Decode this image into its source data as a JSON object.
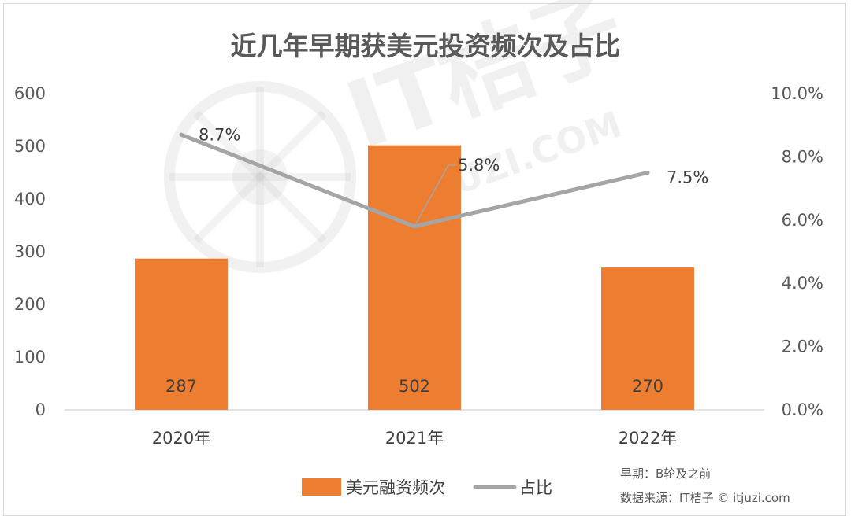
{
  "chart_data": {
    "type": "bar+line",
    "title": "近几年早期获美元投资频次及占比",
    "categories": [
      "2020年",
      "2021年",
      "2022年"
    ],
    "series": [
      {
        "name": "美元融资频次",
        "type": "bar",
        "axis": "left",
        "values": [
          287,
          502,
          270
        ],
        "labels": [
          "287",
          "502",
          "270"
        ]
      },
      {
        "name": "占比",
        "type": "line",
        "axis": "right",
        "values": [
          8.7,
          5.8,
          7.5
        ],
        "labels": [
          "8.7%",
          "5.8%",
          "7.5%"
        ]
      }
    ],
    "y_left": {
      "min": 0,
      "max": 600,
      "ticks": [
        "0",
        "100",
        "200",
        "300",
        "400",
        "500",
        "600"
      ]
    },
    "y_right": {
      "min": 0,
      "max": 10,
      "ticks": [
        "0.0%",
        "2.0%",
        "4.0%",
        "6.0%",
        "8.0%",
        "10.0%"
      ]
    },
    "grid": false,
    "legend_position": "bottom",
    "colors": {
      "bar": "#ED7D31",
      "line": "#A5A5A5",
      "axis": "#d9d9d9"
    },
    "watermark": {
      "brand": "IT桔子",
      "url": "ITJUZI.COM"
    }
  },
  "notes": {
    "early_definition": "早期：B轮及之前",
    "source": "数据来源：IT桔子 © itjuzi.com"
  }
}
